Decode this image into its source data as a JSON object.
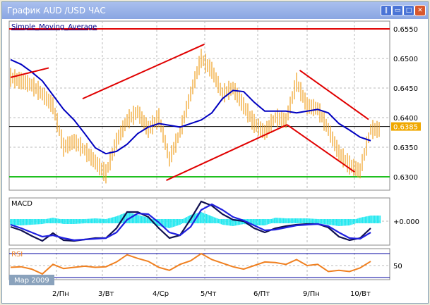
{
  "window": {
    "title": "График AUD /USD  ЧАС",
    "buttons": [
      "minimize",
      "restore",
      "maximize",
      "close"
    ]
  },
  "colors": {
    "price": "#f0a020",
    "sma": "#0000c0",
    "macd_main": "#101050",
    "macd_signal": "#2020e0",
    "macd_hist": "#20e8f0",
    "rsi": "#f08020",
    "trendline": "#e00000",
    "support": "#20c020",
    "current": "#f0a800"
  },
  "chart_data": [
    {
      "type": "line",
      "title": "Simple_Moving_Average",
      "ylim": [
        0.6295,
        0.656
      ],
      "yticks": [
        "0.6550",
        "0.6500",
        "0.6450",
        "0.6400",
        "0.6350",
        "0.6300"
      ],
      "current_price": "0.6385",
      "hline_red": 0.655,
      "hline_green": 0.63,
      "xticks": [
        "2/Пн",
        "3/Вт",
        "4/Ср",
        "5/Чт",
        "6/Пт",
        "9/Пн",
        "10/Вт"
      ],
      "period_label": "Мар 2009",
      "series": [
        {
          "values": [
            0.6468,
            0.6462,
            0.6455,
            0.644,
            0.642,
            0.635,
            0.636,
            0.6345,
            0.6325,
            0.6305,
            0.636,
            0.6395,
            0.641,
            0.638,
            0.64,
            0.633,
            0.6375,
            0.644,
            0.65,
            0.648,
            0.644,
            0.645,
            0.642,
            0.639,
            0.6375,
            0.64,
            0.6395,
            0.646,
            0.642,
            0.6415,
            0.638,
            0.634,
            0.632,
            0.631,
            0.638
          ]
        },
        {
          "values": [
            0.6498,
            0.649,
            0.6477,
            0.6462,
            0.6438,
            0.6414,
            0.6396,
            0.6373,
            0.6349,
            0.6339,
            0.6343,
            0.6355,
            0.6373,
            0.6384,
            0.639,
            0.6387,
            0.6384,
            0.639,
            0.6396,
            0.6408,
            0.6432,
            0.6446,
            0.6444,
            0.6426,
            0.6411,
            0.6411,
            0.6411,
            0.6408,
            0.6411,
            0.6414,
            0.6408,
            0.639,
            0.6379,
            0.6367,
            0.6361
          ]
        }
      ],
      "trendlines": [
        [
          [
            0,
            0.6468
          ],
          [
            3.6,
            0.6484
          ]
        ],
        [
          [
            6.8,
            0.6432
          ],
          [
            18.3,
            0.6524
          ]
        ],
        [
          [
            14.7,
            0.6294
          ],
          [
            26.1,
            0.6388
          ]
        ],
        [
          [
            26.1,
            0.6388
          ],
          [
            32.5,
            0.6308
          ]
        ],
        [
          [
            27.3,
            0.648
          ],
          [
            33.8,
            0.6397
          ]
        ]
      ]
    },
    {
      "type": "line",
      "title": "MACD",
      "yticks": [
        "+0.000"
      ],
      "series": [
        {
          "values": [
            -0.0008,
            -0.0013,
            -0.0021,
            -0.0028,
            -0.0017,
            -0.0027,
            -0.0028,
            -0.0026,
            -0.0024,
            -0.0024,
            -0.001,
            0.0013,
            0.0013,
            0.0006,
            -0.001,
            -0.0024,
            -0.002,
            0.0003,
            0.0028,
            0.0022,
            0.001,
            0.0002,
            0.0,
            -0.001,
            -0.0016,
            -0.001,
            -0.0007,
            -0.0005,
            -0.0004,
            -0.0004,
            -0.0009,
            -0.0022,
            -0.0027,
            -0.0024,
            -0.001
          ]
        },
        {
          "values": [
            -0.0005,
            -0.001,
            -0.0016,
            -0.0022,
            -0.002,
            -0.0024,
            -0.0027,
            -0.0026,
            -0.0025,
            -0.0024,
            -0.0016,
            0.0002,
            0.0011,
            0.001,
            -0.0002,
            -0.0016,
            -0.002,
            -0.0008,
            0.0016,
            0.0024,
            0.0016,
            0.0006,
            0.0001,
            -0.0006,
            -0.0013,
            -0.0012,
            -0.0009,
            -0.0006,
            -0.0005,
            -0.0004,
            -0.0007,
            -0.0016,
            -0.0024,
            -0.0025,
            -0.0016
          ]
        },
        {
          "values": [
            -0.0003,
            -0.0003,
            -0.0002,
            -0.0001,
            0.0002,
            -0.0001,
            -0.0001,
            0.0,
            0.0001,
            0.0,
            0.0004,
            0.001,
            0.0006,
            0.0002,
            -0.0004,
            -0.0007,
            -0.0002,
            0.0006,
            0.001,
            0.0004,
            -0.0002,
            -0.0004,
            -0.0001,
            -0.0003,
            -0.0003,
            0.0002,
            0.0001,
            0.0001,
            0.0001,
            0.0,
            -0.0002,
            -0.0004,
            -0.0003,
            0.0002,
            0.0005
          ]
        }
      ]
    },
    {
      "type": "line",
      "title": "RSI",
      "yticks": [
        "50"
      ],
      "levels": [
        30,
        70
      ],
      "values": [
        47,
        48,
        44,
        36,
        52,
        45,
        47,
        49,
        47,
        48,
        56,
        68,
        62,
        57,
        47,
        42,
        52,
        58,
        70,
        60,
        54,
        48,
        44,
        50,
        56,
        55,
        52,
        60,
        50,
        52,
        40,
        42,
        40,
        46,
        57
      ]
    }
  ]
}
